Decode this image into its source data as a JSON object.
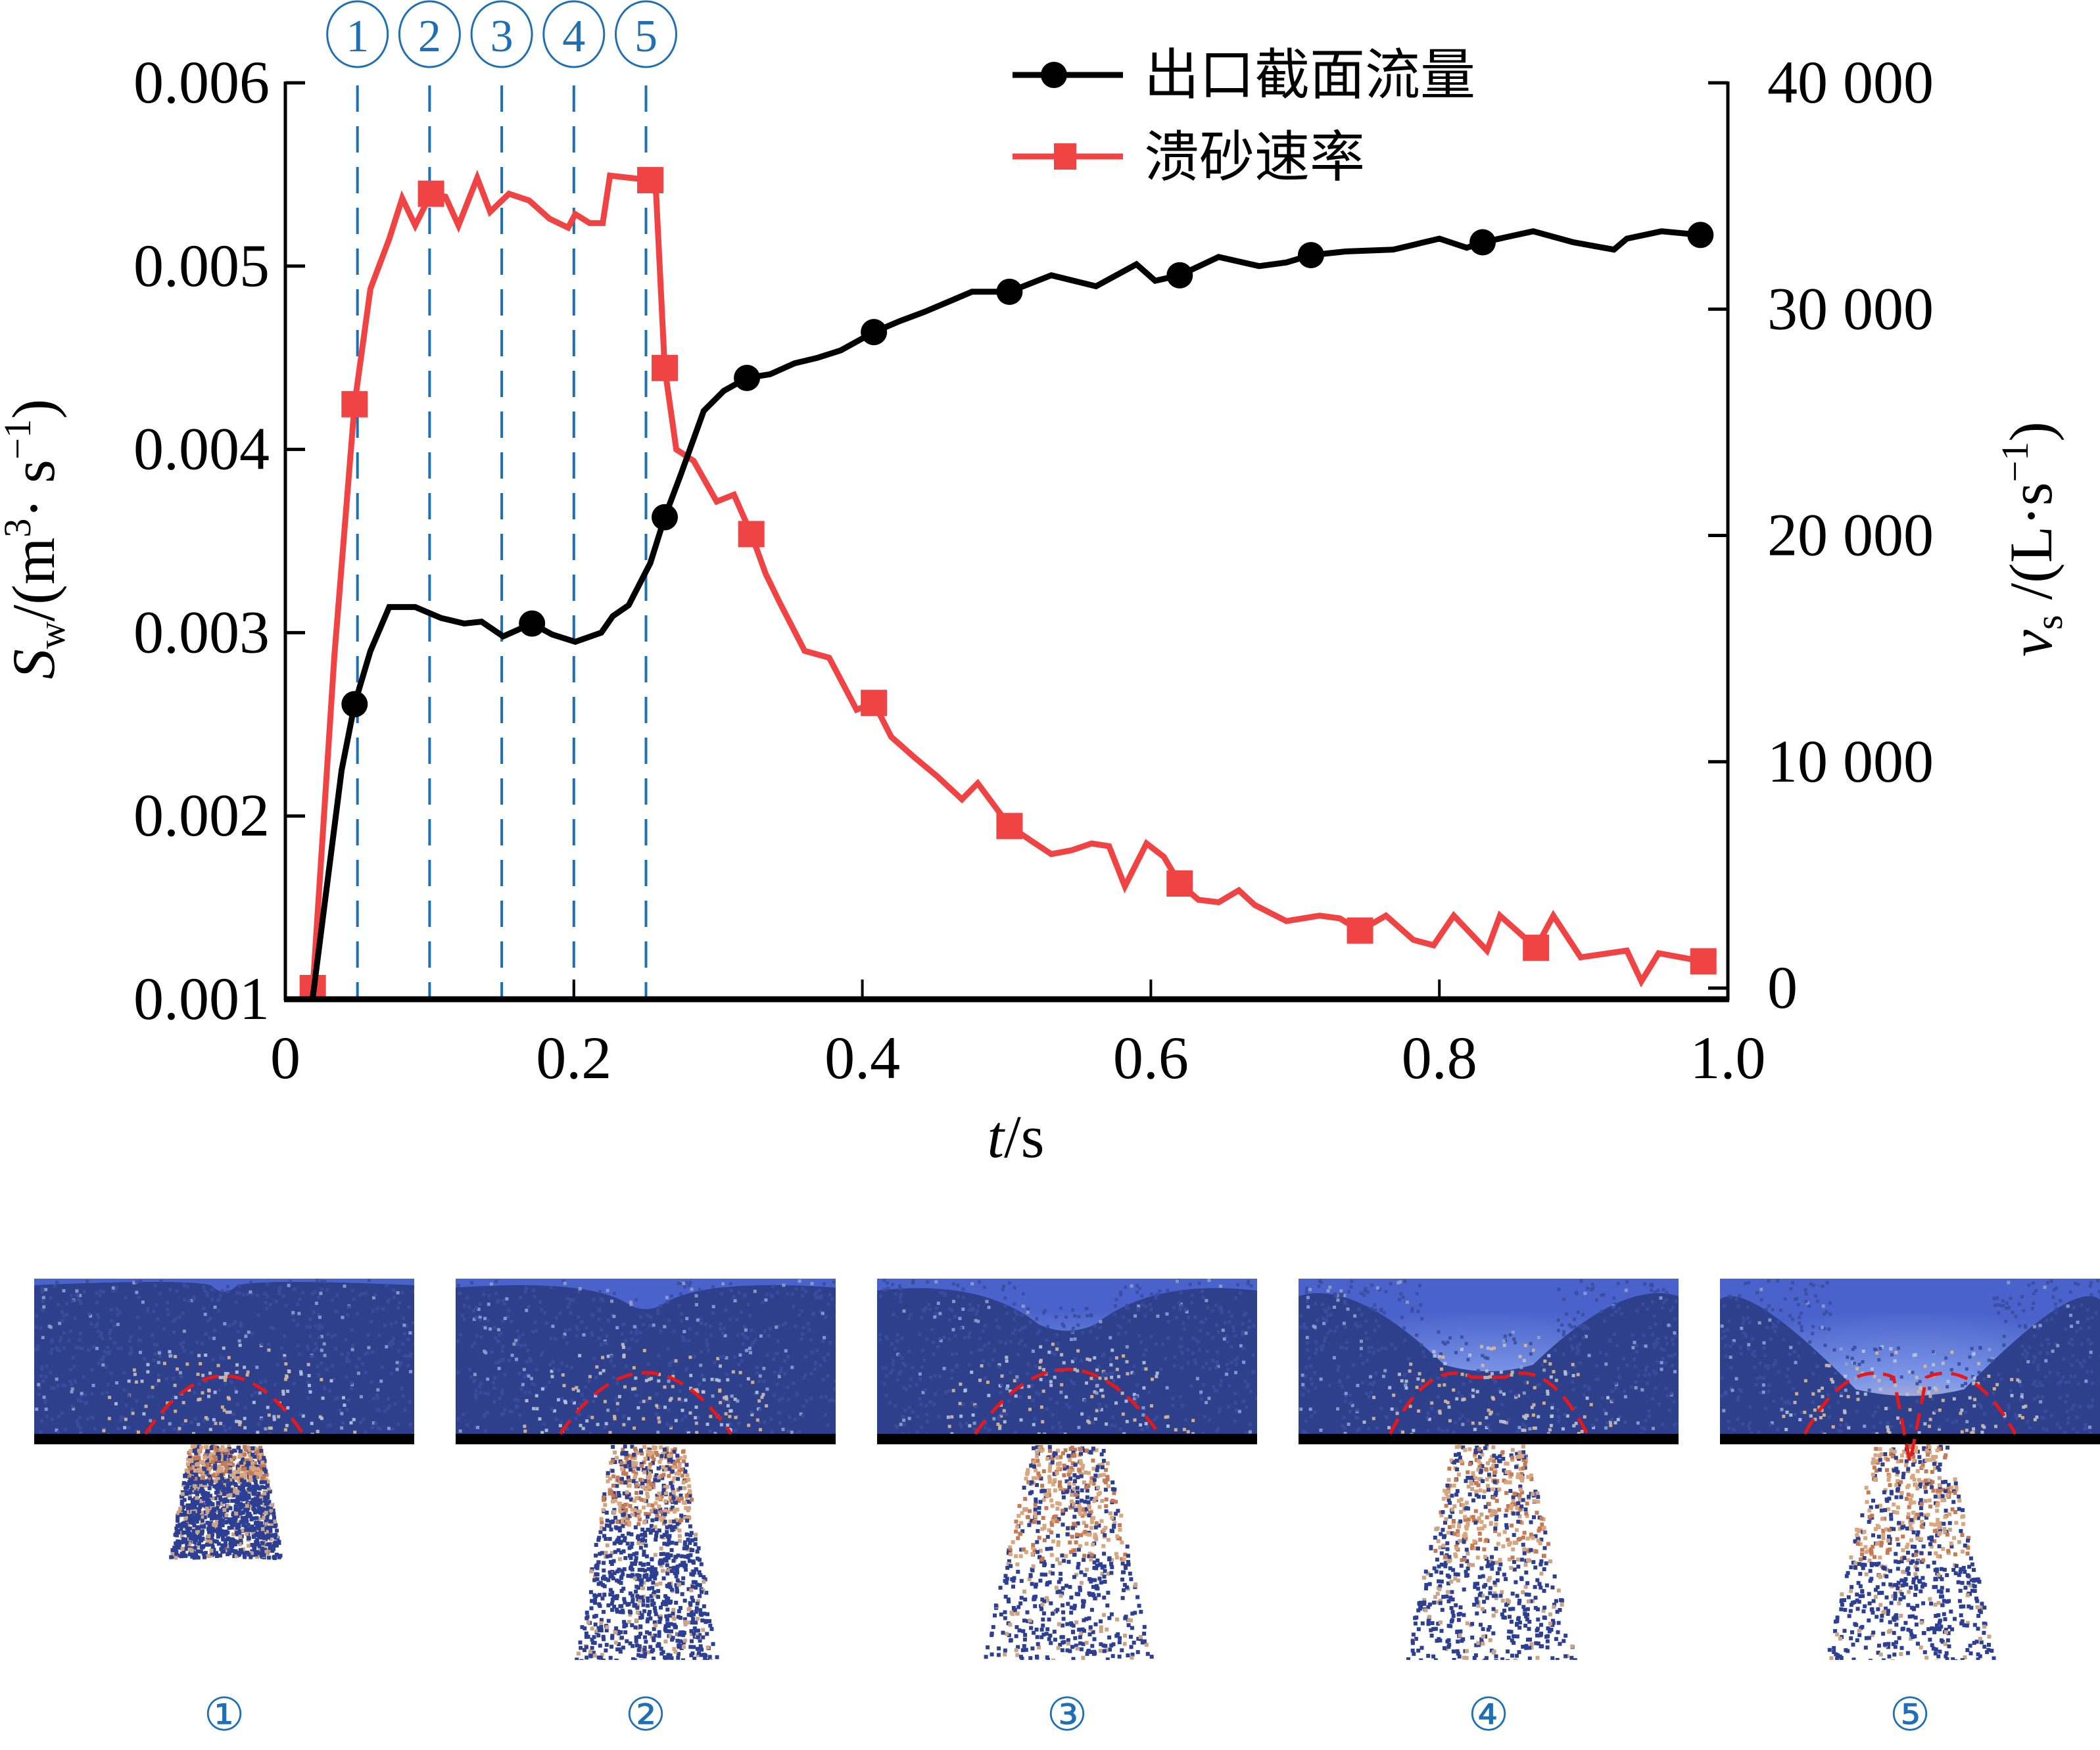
{
  "chart_data": {
    "type": "line",
    "xlabel": "t/s",
    "xlabel_italic": "t",
    "xlabel_unit": "/s",
    "ylabel_left": "S_w/(m^3·s^-1)",
    "ylabel_left_parts": {
      "sym": "S",
      "sub": "w",
      "unit_pre": "/(m",
      "sup1": "3",
      "unit_mid": "· s",
      "sup2": "−1",
      "unit_post": ")"
    },
    "ylabel_right": "v_s /(L·s^-1)",
    "ylabel_right_parts": {
      "sym": "v",
      "sub": "s",
      "unit_pre": " /(L·s",
      "sup": "−1",
      "unit_post": ")"
    },
    "xlim": [
      0,
      1.0
    ],
    "ylim_left": [
      0.001,
      0.006
    ],
    "ylim_right": [
      0,
      40000
    ],
    "x_ticks": [
      "0",
      "0.2",
      "0.4",
      "0.6",
      "0.8",
      "1.0"
    ],
    "x_tick_values": [
      0,
      0.2,
      0.4,
      0.6,
      0.8,
      1.0
    ],
    "y_left_ticks": [
      "0.001",
      "0.002",
      "0.003",
      "0.004",
      "0.005",
      "0.006"
    ],
    "y_left_tick_values": [
      0.001,
      0.002,
      0.003,
      0.004,
      0.005,
      0.006
    ],
    "y_right_ticks": [
      "0",
      "10 000",
      "20 000",
      "30 000",
      "40 000"
    ],
    "y_right_tick_values": [
      0,
      10000,
      20000,
      30000,
      40000
    ],
    "legend_position": "top-right",
    "series": [
      {
        "name": "出口截面流量",
        "axis": "left",
        "color": "#000000",
        "marker": "circle",
        "x": [
          0.019,
          0.039,
          0.048,
          0.059,
          0.072,
          0.09,
          0.108,
          0.124,
          0.136,
          0.151,
          0.171,
          0.185,
          0.201,
          0.219,
          0.227,
          0.238,
          0.253,
          0.263,
          0.274,
          0.29,
          0.304,
          0.32,
          0.336,
          0.353,
          0.369,
          0.385,
          0.408,
          0.426,
          0.443,
          0.461,
          0.476,
          0.502,
          0.531,
          0.562,
          0.59,
          0.603,
          0.62,
          0.647,
          0.675,
          0.694,
          0.711,
          0.735,
          0.768,
          0.8,
          0.819,
          0.83,
          0.865,
          0.893,
          0.921,
          0.93,
          0.954,
          0.981
        ],
        "y": [
          0.00101,
          0.00225,
          0.00261,
          0.0029,
          0.00314,
          0.00314,
          0.00308,
          0.00305,
          0.00306,
          0.00298,
          0.00305,
          0.00299,
          0.00295,
          0.003,
          0.00309,
          0.00315,
          0.00338,
          0.00363,
          0.00386,
          0.00421,
          0.00432,
          0.00439,
          0.00441,
          0.00447,
          0.0045,
          0.00454,
          0.00464,
          0.0047,
          0.00475,
          0.00481,
          0.00486,
          0.00486,
          0.00495,
          0.00489,
          0.00501,
          0.00492,
          0.00495,
          0.00505,
          0.005,
          0.00502,
          0.00506,
          0.00508,
          0.00509,
          0.00515,
          0.0051,
          0.00513,
          0.00519,
          0.00513,
          0.00509,
          0.00515,
          0.00519,
          0.00517
        ],
        "marker_indices": [
          2,
          10,
          17,
          21,
          26,
          31,
          36,
          40,
          45,
          51
        ]
      },
      {
        "name": "溃砂速率",
        "axis": "right",
        "color": "#f04444",
        "marker": "square",
        "x": [
          0.019,
          0.034,
          0.048,
          0.059,
          0.072,
          0.081,
          0.09,
          0.101,
          0.111,
          0.12,
          0.133,
          0.142,
          0.155,
          0.169,
          0.183,
          0.196,
          0.201,
          0.211,
          0.22,
          0.225,
          0.253,
          0.257,
          0.263,
          0.271,
          0.283,
          0.299,
          0.311,
          0.323,
          0.333,
          0.343,
          0.36,
          0.377,
          0.396,
          0.408,
          0.42,
          0.436,
          0.452,
          0.469,
          0.48,
          0.502,
          0.517,
          0.531,
          0.545,
          0.559,
          0.571,
          0.582,
          0.597,
          0.609,
          0.62,
          0.633,
          0.647,
          0.661,
          0.672,
          0.694,
          0.717,
          0.731,
          0.745,
          0.763,
          0.782,
          0.796,
          0.81,
          0.833,
          0.842,
          0.867,
          0.879,
          0.898,
          0.93,
          0.94,
          0.952,
          0.983
        ],
        "y": [
          0,
          14700,
          25800,
          30900,
          33100,
          34900,
          33700,
          35100,
          34970,
          33700,
          35800,
          34300,
          35100,
          34800,
          34000,
          33600,
          34200,
          33800,
          33800,
          35900,
          35700,
          35100,
          27400,
          23800,
          23300,
          21500,
          21800,
          20060,
          18300,
          17000,
          14900,
          14600,
          12300,
          12600,
          11100,
          10200,
          9350,
          8340,
          9050,
          7160,
          6510,
          5920,
          6090,
          6390,
          6270,
          4500,
          6390,
          5800,
          4620,
          3900,
          3790,
          4320,
          3670,
          2960,
          3200,
          3080,
          2540,
          3200,
          2130,
          1890,
          3200,
          1660,
          3200,
          1780,
          3200,
          1360,
          1660,
          300,
          1540,
          1180
        ],
        "marker_indices": [
          0,
          2,
          7,
          20,
          22,
          27,
          33,
          39,
          48,
          56,
          63,
          69
        ]
      }
    ],
    "phase_lines": {
      "color": "#1f6fb4",
      "x": [
        0.05,
        0.1,
        0.15,
        0.2,
        0.25
      ],
      "labels": [
        "①",
        "②",
        "③",
        "④",
        "⑤"
      ]
    }
  },
  "panels": [
    {
      "label": "①"
    },
    {
      "label": "②"
    },
    {
      "label": "③"
    },
    {
      "label": "④"
    },
    {
      "label": "⑤"
    }
  ]
}
